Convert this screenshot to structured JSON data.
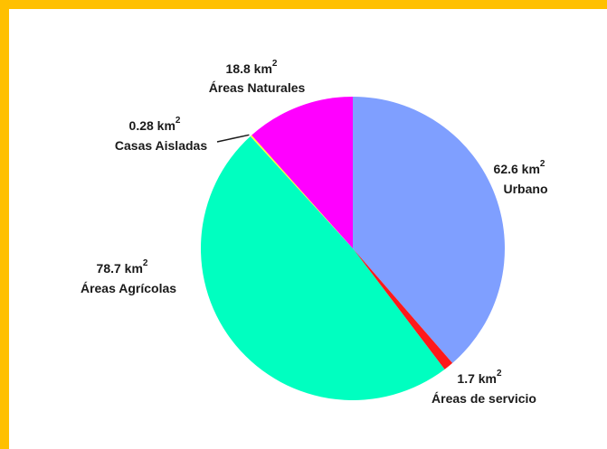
{
  "chart_data": {
    "type": "pie",
    "title": "",
    "unit": "km2",
    "slices": [
      {
        "name": "Urbano",
        "value": 62.6,
        "value_label": "62.6 km",
        "color": "#7f9fff"
      },
      {
        "name": "Áreas de servicio",
        "value": 1.7,
        "value_label": "1.7 km",
        "color": "#ff1a1a"
      },
      {
        "name": "Áreas Agrícolas",
        "value": 78.7,
        "value_label": "78.7 km",
        "color": "#00ffc0"
      },
      {
        "name": "Casas Aisladas",
        "value": 0.28,
        "value_label": "0.28 km",
        "color": "#ffff33"
      },
      {
        "name": "Áreas Naturales",
        "value": 18.8,
        "value_label": "18.8 km",
        "color": "#ff00ff"
      }
    ],
    "superscript": "2",
    "start": "top",
    "direction": "clockwise"
  }
}
